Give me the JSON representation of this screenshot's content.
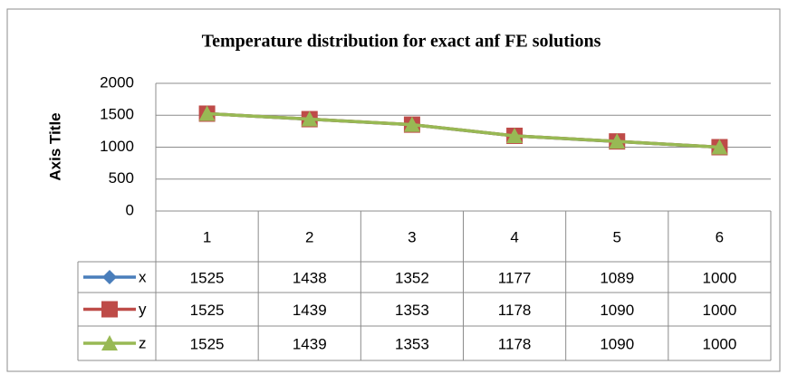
{
  "chart_data": {
    "type": "line",
    "title": "Temperature distribution for exact anf FE solutions",
    "y_axis_title": "Axis Title",
    "categories": [
      "1",
      "2",
      "3",
      "4",
      "5",
      "6"
    ],
    "series": [
      {
        "name": "x",
        "color": "#4a7ebb",
        "marker": "diamond",
        "values": [
          1525,
          1438,
          1352,
          1177,
          1089,
          1000
        ]
      },
      {
        "name": "y",
        "color": "#be4b48",
        "marker": "square",
        "values": [
          1525,
          1439,
          1353,
          1178,
          1090,
          1000
        ]
      },
      {
        "name": "z",
        "color": "#98b954",
        "marker": "triangle",
        "values": [
          1525,
          1439,
          1353,
          1178,
          1090,
          1000
        ]
      }
    ],
    "ylim": [
      0,
      2000
    ],
    "yticks": [
      0,
      500,
      1000,
      1500,
      2000
    ],
    "grid": true,
    "data_table": true
  }
}
